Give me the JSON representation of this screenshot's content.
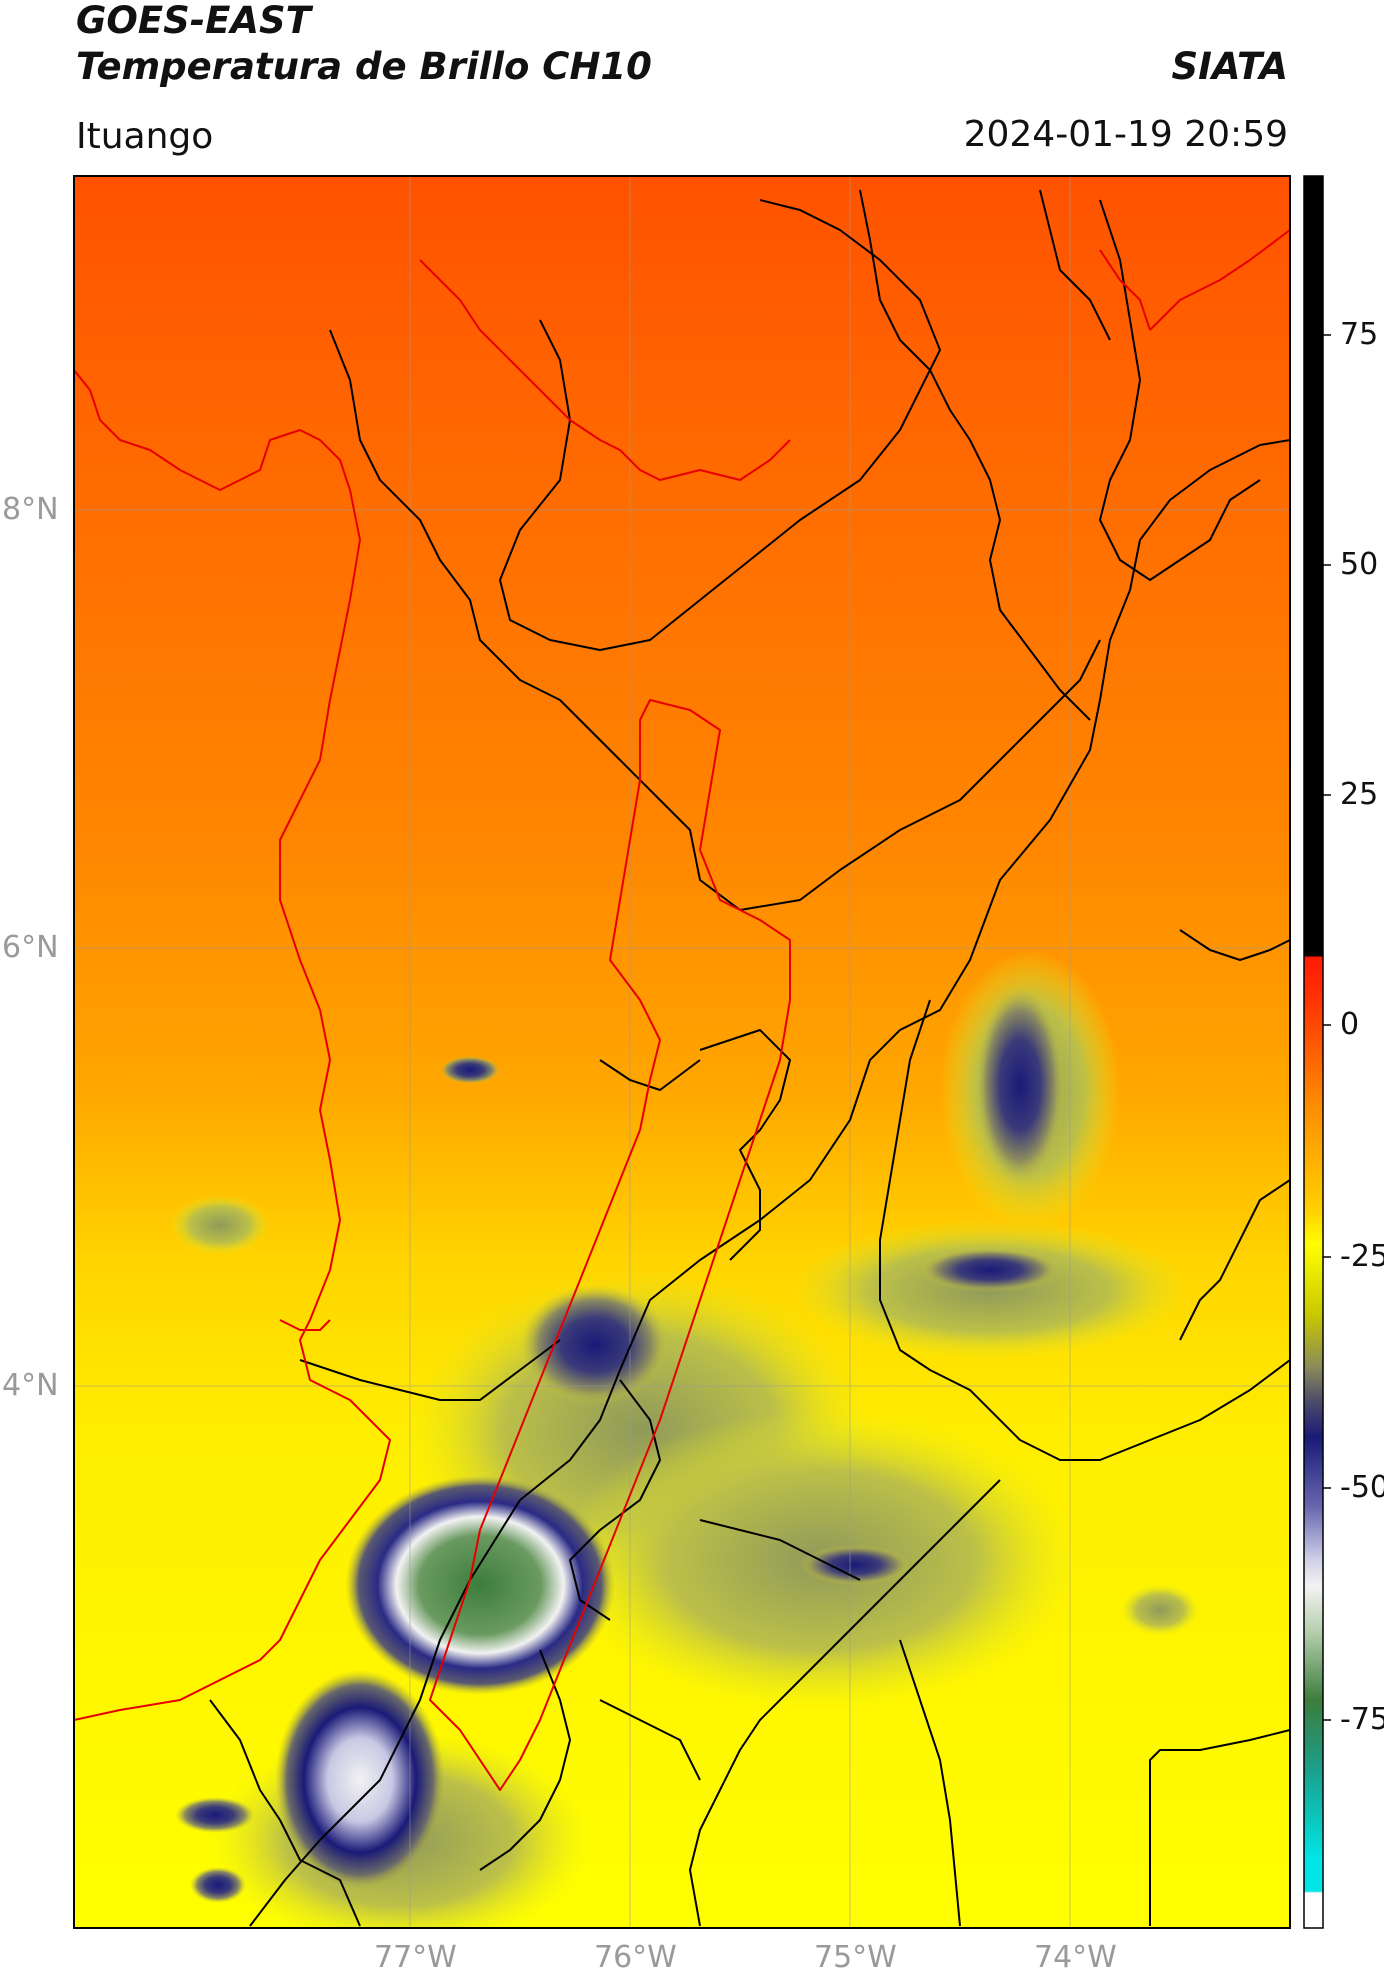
{
  "header": {
    "line1": "GOES-EAST",
    "line2": "Temperatura de Brillo CH10",
    "brand": "SIATA",
    "place": "Ituango",
    "timestamp": "2024-01-19 20:59"
  },
  "map": {
    "lat_labels": [
      "8°N",
      "6°N",
      "4°N"
    ],
    "lon_labels": [
      "77°W",
      "76°W",
      "75°W",
      "74°W"
    ]
  },
  "colorbar": {
    "ticks": [
      "75",
      "50",
      "25",
      "0",
      "-25",
      "-50",
      "-75"
    ],
    "colors": {
      "black": "#000000",
      "red": "#ff1a00",
      "orange": "#ff8c00",
      "yellow": "#ffff00",
      "olive": "#a3a35a",
      "navy": "#1a1a78",
      "white": "#f2f2f2",
      "green": "#3c7d3c",
      "teal": "#1aa08c",
      "cyan": "#00e5e5"
    }
  }
}
